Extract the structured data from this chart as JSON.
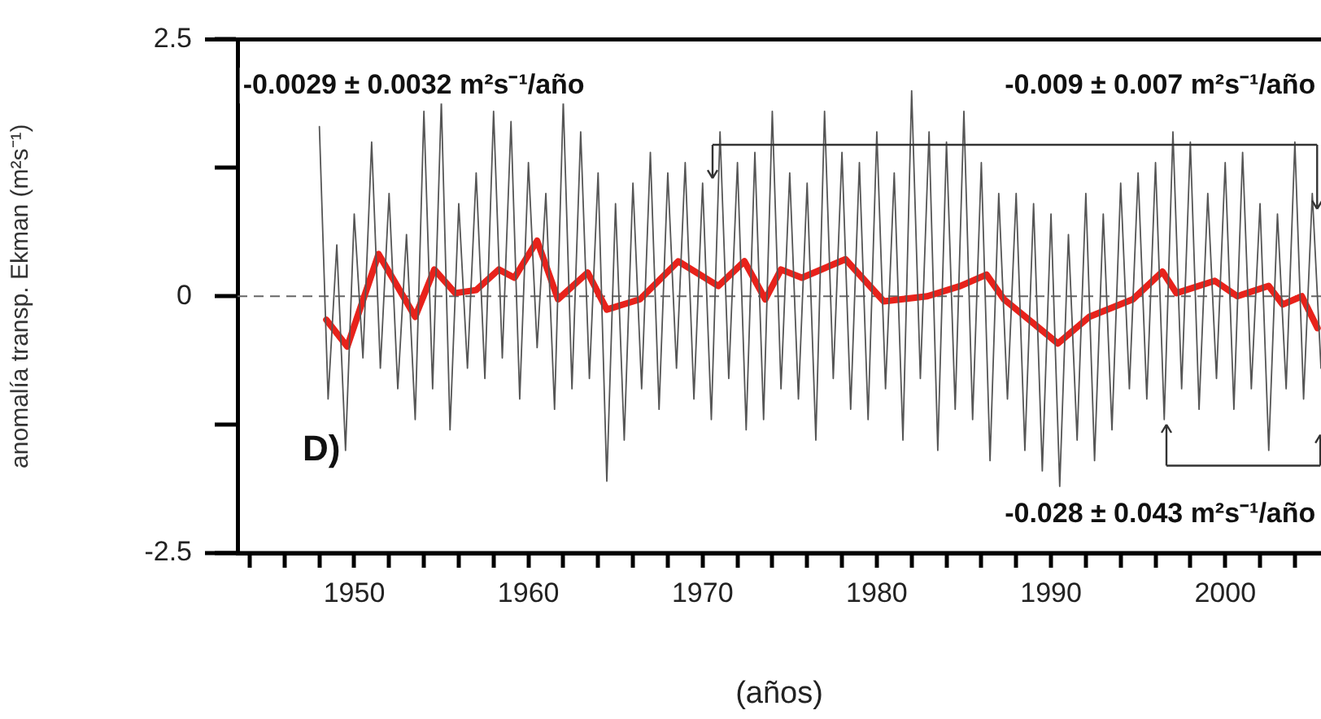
{
  "chart_data": {
    "type": "line",
    "xlabel": "(años)",
    "ylabel": "anomalía transp. Ekman (m²s⁻¹)",
    "xlim": [
      1943.3,
      2005.5
    ],
    "ylim": [
      -2.5,
      2.5
    ],
    "xticks": [
      {
        "value": 1944,
        "label": null
      },
      {
        "value": 1946,
        "label": null
      },
      {
        "value": 1948,
        "label": null
      },
      1950,
      {
        "value": 1952,
        "label": null
      },
      {
        "value": 1954,
        "label": null
      },
      {
        "value": 1956,
        "label": null
      },
      {
        "value": 1958,
        "label": null
      },
      1960,
      {
        "value": 1962,
        "label": null
      },
      {
        "value": 1964,
        "label": null
      },
      {
        "value": 1966,
        "label": null
      },
      {
        "value": 1968,
        "label": null
      },
      1970,
      {
        "value": 1972,
        "label": null
      },
      {
        "value": 1974,
        "label": null
      },
      {
        "value": 1976,
        "label": null
      },
      {
        "value": 1978,
        "label": null
      },
      1980,
      {
        "value": 1982,
        "label": null
      },
      {
        "value": 1984,
        "label": null
      },
      {
        "value": 1986,
        "label": null
      },
      {
        "value": 1988,
        "label": null
      },
      1990,
      {
        "value": 1992,
        "label": null
      },
      {
        "value": 1994,
        "label": null
      },
      {
        "value": 1996,
        "label": null
      },
      {
        "value": 1998,
        "label": null
      },
      2000,
      {
        "value": 2002,
        "label": null
      },
      {
        "value": 2004,
        "label": null
      }
    ],
    "yticks": [
      -2.5,
      {
        "value": -1.25,
        "label": null
      },
      0,
      {
        "value": 1.25,
        "label": null
      },
      2.5
    ],
    "grid": false,
    "legend": false,
    "marker": "none",
    "line_style": "solid",
    "ref_lines": [
      {
        "axis": "y",
        "value": 0,
        "color": "#666666",
        "line_style": "dashed"
      }
    ],
    "annotations": [
      "-0.0029 ± 0.0032 m²s⁻¹/año",
      "-0.009 ± 0.007 m²s⁻¹/año",
      "-0.028 ± 0.043 m²s⁻¹/año",
      "D)"
    ],
    "series": [
      {
        "color": "#555555",
        "x": [
          1948.0,
          1948.5,
          1949.0,
          1949.5,
          1950.0,
          1950.5,
          1951.0,
          1951.5,
          1952.0,
          1952.5,
          1953.0,
          1953.5,
          1954.0,
          1954.5,
          1955.0,
          1955.5,
          1956.0,
          1956.5,
          1957.0,
          1957.5,
          1958.0,
          1958.5,
          1959.0,
          1959.5,
          1960.0,
          1960.5,
          1961.0,
          1961.5,
          1962.0,
          1962.5,
          1963.0,
          1963.5,
          1964.0,
          1964.5,
          1965.0,
          1965.5,
          1966.0,
          1966.5,
          1967.0,
          1967.5,
          1968.0,
          1968.5,
          1969.0,
          1969.5,
          1970.0,
          1970.5,
          1971.0,
          1971.5,
          1972.0,
          1972.5,
          1973.0,
          1973.5,
          1974.0,
          1974.5,
          1975.0,
          1975.5,
          1976.0,
          1976.5,
          1977.0,
          1977.5,
          1978.0,
          1978.5,
          1979.0,
          1979.5,
          1980.0,
          1980.5,
          1981.0,
          1981.5,
          1982.0,
          1982.5,
          1983.0,
          1983.5,
          1984.0,
          1984.5,
          1985.0,
          1985.5,
          1986.0,
          1986.5,
          1987.0,
          1987.5,
          1988.0,
          1988.5,
          1989.0,
          1989.5,
          1990.0,
          1990.5,
          1991.0,
          1991.5,
          1992.0,
          1992.5,
          1993.0,
          1993.5,
          1994.0,
          1994.5,
          1995.0,
          1995.5,
          1996.0,
          1996.5,
          1997.0,
          1997.5,
          1998.0,
          1998.5,
          1999.0,
          1999.5,
          2000.0,
          2000.5,
          2001.0,
          2001.5,
          2002.0,
          2002.5,
          2003.0,
          2003.5,
          2004.0,
          2004.5,
          2005.0,
          2005.5
        ],
        "values": [
          1.65,
          -1.0,
          0.5,
          -1.5,
          0.8,
          -0.6,
          1.5,
          -0.7,
          1.0,
          -0.9,
          0.6,
          -1.2,
          1.8,
          -0.9,
          1.9,
          -1.3,
          0.9,
          -0.7,
          1.2,
          -0.8,
          1.8,
          -0.6,
          1.7,
          -1.0,
          1.3,
          -0.5,
          1.0,
          -1.1,
          1.9,
          -0.9,
          1.6,
          -0.8,
          1.2,
          -1.8,
          0.9,
          -1.4,
          1.1,
          -0.9,
          1.4,
          -1.1,
          1.2,
          -0.7,
          1.3,
          -1.0,
          1.1,
          -1.2,
          1.6,
          -0.8,
          1.3,
          -1.3,
          1.4,
          -1.2,
          1.8,
          -0.9,
          1.2,
          -1.0,
          1.1,
          -1.4,
          1.8,
          -0.8,
          1.4,
          -1.1,
          1.3,
          -1.2,
          1.6,
          -0.9,
          1.2,
          -1.4,
          2.0,
          -0.8,
          1.6,
          -1.5,
          1.5,
          -1.1,
          1.8,
          -1.2,
          1.3,
          -1.6,
          1.0,
          -1.0,
          1.0,
          -1.5,
          0.9,
          -1.7,
          0.8,
          -1.85,
          0.6,
          -1.4,
          1.0,
          -1.6,
          0.8,
          -1.3,
          1.1,
          -0.9,
          1.2,
          -1.0,
          1.3,
          -1.2,
          1.6,
          -0.9,
          1.5,
          -1.1,
          1.0,
          -0.8,
          1.3,
          -1.1,
          1.4,
          -0.9,
          0.9,
          -1.5,
          0.8,
          -0.9,
          1.5,
          -1.0,
          1.0,
          -0.7
        ]
      },
      {
        "color": "#e8221b",
        "x": [
          1948.4,
          1949.6,
          1951.4,
          1953.5,
          1954.6,
          1955.8,
          1957.0,
          1958.3,
          1959.2,
          1960.5,
          1961.7,
          1963.4,
          1964.5,
          1966.4,
          1968.6,
          1970.9,
          1972.4,
          1973.6,
          1974.5,
          1975.7,
          1978.2,
          1980.4,
          1982.9,
          1984.8,
          1986.3,
          1987.3,
          1990.4,
          1992.2,
          1994.7,
          1996.4,
          1997.2,
          1999.4,
          2000.7,
          2002.5,
          2003.3,
          2004.4,
          2005.3
        ],
        "values": [
          -0.23,
          -0.49,
          0.41,
          -0.2,
          0.26,
          0.03,
          0.06,
          0.26,
          0.18,
          0.54,
          -0.03,
          0.23,
          -0.13,
          -0.03,
          0.34,
          0.1,
          0.34,
          -0.03,
          0.26,
          0.18,
          0.36,
          -0.05,
          0.0,
          0.1,
          0.21,
          -0.03,
          -0.46,
          -0.2,
          -0.03,
          0.24,
          0.03,
          0.15,
          0.0,
          0.1,
          -0.08,
          0.0,
          -0.31
        ]
      }
    ]
  }
}
